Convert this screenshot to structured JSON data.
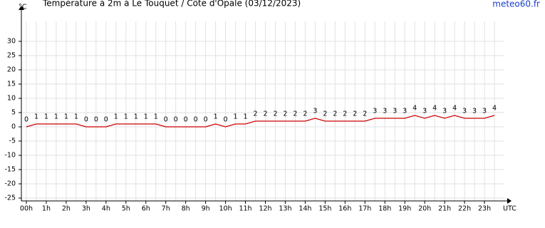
{
  "chart_data": {
    "type": "line",
    "title": "Température à 2m à Le Touquet / Côte d'Opale (03/12/2023)",
    "source": "meteo60.fr",
    "y_label": "°C",
    "x_label": "UTC",
    "x": [
      0,
      0.5,
      1,
      1.5,
      2,
      2.5,
      3,
      3.5,
      4,
      4.5,
      5,
      5.5,
      6,
      6.5,
      7,
      7.5,
      8,
      8.5,
      9,
      9.5,
      10,
      10.5,
      11,
      11.5,
      12,
      12.5,
      13,
      13.5,
      14,
      14.5,
      15,
      15.5,
      16,
      16.5,
      17,
      17.5,
      18,
      18.5,
      19,
      19.5,
      20,
      20.5,
      21,
      21.5,
      22,
      22.5,
      23,
      23.5
    ],
    "series": [
      {
        "name": "Température",
        "color": "#cc0000",
        "values": [
          0,
          1,
          1,
          1,
          1,
          1,
          0,
          0,
          0,
          1,
          1,
          1,
          1,
          1,
          0,
          0,
          0,
          0,
          0,
          1,
          0,
          1,
          1,
          2,
          2,
          2,
          2,
          2,
          2,
          3,
          2,
          2,
          2,
          2,
          2,
          3,
          3,
          3,
          3,
          4,
          3,
          4,
          3,
          4,
          3,
          3,
          3,
          4
        ]
      }
    ],
    "xlim": [
      -0.25,
      24
    ],
    "xticks": [
      {
        "value": 0,
        "label": "00h"
      },
      {
        "value": 1,
        "label": "1h"
      },
      {
        "value": 2,
        "label": "2h"
      },
      {
        "value": 3,
        "label": "3h"
      },
      {
        "value": 4,
        "label": "4h"
      },
      {
        "value": 5,
        "label": "5h"
      },
      {
        "value": 6,
        "label": "6h"
      },
      {
        "value": 7,
        "label": "7h"
      },
      {
        "value": 8,
        "label": "8h"
      },
      {
        "value": 9,
        "label": "9h"
      },
      {
        "value": 10,
        "label": "10h"
      },
      {
        "value": 11,
        "label": "11h"
      },
      {
        "value": 12,
        "label": "12h"
      },
      {
        "value": 13,
        "label": "13h"
      },
      {
        "value": 14,
        "label": "14h"
      },
      {
        "value": 15,
        "label": "15h"
      },
      {
        "value": 16,
        "label": "16h"
      },
      {
        "value": 17,
        "label": "17h"
      },
      {
        "value": 18,
        "label": "18h"
      },
      {
        "value": 19,
        "label": "19h"
      },
      {
        "value": 20,
        "label": "20h"
      },
      {
        "value": 21,
        "label": "21h"
      },
      {
        "value": 22,
        "label": "22h"
      },
      {
        "value": 23,
        "label": "23h"
      }
    ],
    "ylim": [
      -26,
      37
    ],
    "yticks": [
      30,
      25,
      20,
      15,
      10,
      5,
      0,
      -5,
      -10,
      -15,
      -20,
      -25
    ],
    "grid": true
  }
}
